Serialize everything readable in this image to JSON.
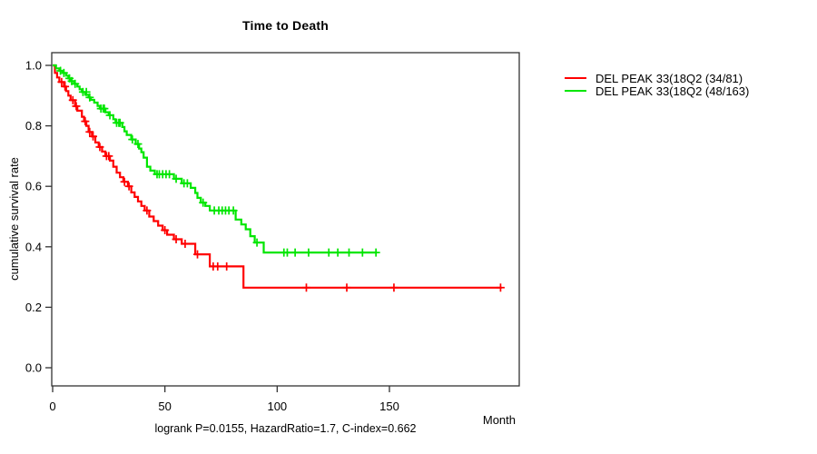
{
  "chart_data": {
    "type": "line",
    "subtype": "kaplan-meier-step",
    "title": "Time to Death",
    "xlabel": "Month",
    "ylabel": "cumulative survival rate",
    "annotation": "logrank P=0.0155, HazardRatio=1.7, C-index=0.662",
    "x_ticks": [
      0,
      50,
      100,
      150
    ],
    "y_ticks": [
      "0.0",
      "0.2",
      "0.4",
      "0.6",
      "0.8",
      "1.0"
    ],
    "xlim": [
      0,
      208
    ],
    "ylim": [
      0,
      1.04
    ],
    "grid": false,
    "legend_position": "right-outside",
    "axis_color": "#333333",
    "series": [
      {
        "id": "group-red",
        "name": "DEL PEAK 33(18Q2 (34/81)",
        "color": "#ff0000",
        "end": 200,
        "steps": [
          [
            1,
            0.975
          ],
          [
            2,
            0.96
          ],
          [
            3,
            0.945
          ],
          [
            5,
            0.93
          ],
          [
            6,
            0.915
          ],
          [
            7,
            0.9
          ],
          [
            8,
            0.885
          ],
          [
            10,
            0.865
          ],
          [
            11,
            0.85
          ],
          [
            13,
            0.83
          ],
          [
            14,
            0.815
          ],
          [
            15,
            0.8
          ],
          [
            16,
            0.78
          ],
          [
            17.5,
            0.765
          ],
          [
            19,
            0.745
          ],
          [
            20.5,
            0.73
          ],
          [
            22,
            0.715
          ],
          [
            23.5,
            0.7
          ],
          [
            25.5,
            0.685
          ],
          [
            27,
            0.665
          ],
          [
            28.5,
            0.645
          ],
          [
            30,
            0.63
          ],
          [
            31.5,
            0.615
          ],
          [
            33.5,
            0.6
          ],
          [
            35,
            0.58
          ],
          [
            36.5,
            0.565
          ],
          [
            38,
            0.55
          ],
          [
            39.5,
            0.535
          ],
          [
            41,
            0.52
          ],
          [
            43,
            0.5
          ],
          [
            45,
            0.485
          ],
          [
            47,
            0.47
          ],
          [
            49,
            0.455
          ],
          [
            51,
            0.44
          ],
          [
            54,
            0.425
          ],
          [
            57.5,
            0.41
          ],
          [
            63.5,
            0.375
          ],
          [
            70,
            0.335
          ],
          [
            85,
            0.265
          ]
        ],
        "censors": [
          [
            4,
            0.945
          ],
          [
            5.5,
            0.93
          ],
          [
            9,
            0.885
          ],
          [
            10.5,
            0.865
          ],
          [
            14.5,
            0.815
          ],
          [
            16.5,
            0.78
          ],
          [
            18,
            0.765
          ],
          [
            21,
            0.73
          ],
          [
            24,
            0.7
          ],
          [
            25,
            0.7
          ],
          [
            32,
            0.615
          ],
          [
            34,
            0.6
          ],
          [
            42,
            0.52
          ],
          [
            50,
            0.455
          ],
          [
            55,
            0.425
          ],
          [
            59,
            0.41
          ],
          [
            64.5,
            0.375
          ],
          [
            71.5,
            0.335
          ],
          [
            73.5,
            0.335
          ],
          [
            77.5,
            0.335
          ],
          [
            113,
            0.265
          ],
          [
            131,
            0.265
          ],
          [
            152,
            0.265
          ],
          [
            199.5,
            0.265
          ]
        ]
      },
      {
        "id": "group-green",
        "name": "DEL PEAK 33(18Q2 (48/163)",
        "color": "#00e600",
        "end": 144.5,
        "steps": [
          [
            1.5,
            0.99
          ],
          [
            3,
            0.982
          ],
          [
            4.5,
            0.975
          ],
          [
            6,
            0.966
          ],
          [
            7,
            0.957
          ],
          [
            8,
            0.948
          ],
          [
            9.5,
            0.939
          ],
          [
            11,
            0.93
          ],
          [
            12,
            0.921
          ],
          [
            13,
            0.912
          ],
          [
            14.5,
            0.903
          ],
          [
            16,
            0.894
          ],
          [
            17,
            0.886
          ],
          [
            18.5,
            0.877
          ],
          [
            20,
            0.866
          ],
          [
            21,
            0.857
          ],
          [
            23.5,
            0.845
          ],
          [
            25,
            0.835
          ],
          [
            27,
            0.822
          ],
          [
            28,
            0.81
          ],
          [
            31,
            0.796
          ],
          [
            32,
            0.782
          ],
          [
            33,
            0.77
          ],
          [
            35,
            0.755
          ],
          [
            37,
            0.74
          ],
          [
            38.5,
            0.725
          ],
          [
            39.5,
            0.713
          ],
          [
            40.5,
            0.695
          ],
          [
            42,
            0.665
          ],
          [
            43.5,
            0.652
          ],
          [
            45.5,
            0.64
          ],
          [
            54,
            0.625
          ],
          [
            57.5,
            0.61
          ],
          [
            61.5,
            0.595
          ],
          [
            63.5,
            0.578
          ],
          [
            64.5,
            0.562
          ],
          [
            66,
            0.546
          ],
          [
            68,
            0.535
          ],
          [
            70,
            0.52
          ],
          [
            81.5,
            0.49
          ],
          [
            84,
            0.474
          ],
          [
            86,
            0.458
          ],
          [
            88,
            0.435
          ],
          [
            90,
            0.414
          ],
          [
            94,
            0.381
          ]
        ],
        "censors": [
          [
            3.5,
            0.982
          ],
          [
            5,
            0.975
          ],
          [
            7.5,
            0.957
          ],
          [
            8.5,
            0.948
          ],
          [
            10,
            0.939
          ],
          [
            13.5,
            0.912
          ],
          [
            15,
            0.912
          ],
          [
            16.5,
            0.894
          ],
          [
            21.5,
            0.857
          ],
          [
            22.5,
            0.857
          ],
          [
            23,
            0.857
          ],
          [
            25.5,
            0.835
          ],
          [
            28.5,
            0.81
          ],
          [
            29.5,
            0.81
          ],
          [
            30,
            0.81
          ],
          [
            35.5,
            0.755
          ],
          [
            38,
            0.74
          ],
          [
            46.5,
            0.64
          ],
          [
            47.5,
            0.64
          ],
          [
            49,
            0.64
          ],
          [
            50.5,
            0.64
          ],
          [
            52,
            0.64
          ],
          [
            55,
            0.625
          ],
          [
            58.5,
            0.61
          ],
          [
            60,
            0.61
          ],
          [
            67,
            0.546
          ],
          [
            72,
            0.52
          ],
          [
            74,
            0.52
          ],
          [
            75.5,
            0.52
          ],
          [
            77,
            0.52
          ],
          [
            78.5,
            0.52
          ],
          [
            80.5,
            0.52
          ],
          [
            91,
            0.414
          ],
          [
            103,
            0.381
          ],
          [
            104.5,
            0.381
          ],
          [
            108,
            0.381
          ],
          [
            114,
            0.381
          ],
          [
            123,
            0.381
          ],
          [
            127,
            0.381
          ],
          [
            132,
            0.381
          ],
          [
            138,
            0.381
          ],
          [
            144,
            0.381
          ]
        ]
      }
    ]
  }
}
